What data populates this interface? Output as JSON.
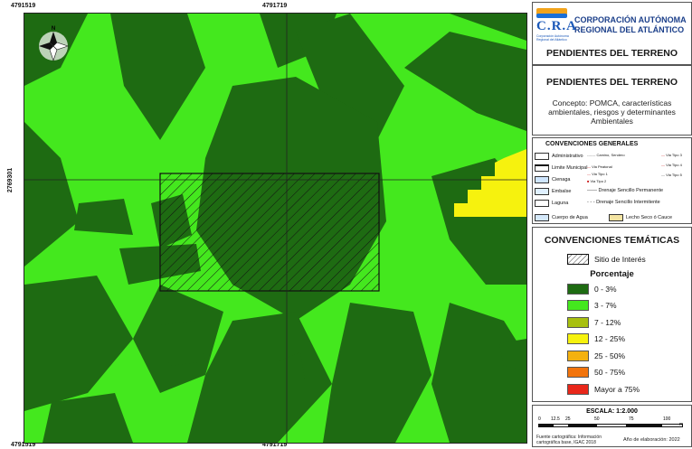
{
  "coords": {
    "top_left": "4791519",
    "top_center": "4791719",
    "bottom_left": "4791519",
    "bottom_center": "4791719",
    "left_mid": "2769301",
    "right_mid": "2769301",
    "right_bottom": "2769101"
  },
  "header": {
    "logo_text": "C.R.A",
    "logo_sub": "Corporación Autónoma Regional del Atlántico",
    "corp_line1": "CORPORACIÓN AUTÓNOMA",
    "corp_line2": "REGIONAL DEL ATLÁNTICO"
  },
  "title": "PENDIENTES DEL TERRENO",
  "concept": {
    "line1": "Concepto: POMCA, características",
    "line2": "ambientales, riesgos y determinantes",
    "line3": "Ambientales"
  },
  "general": {
    "title": "CONVENCIONES GENERALES",
    "items": {
      "administrativo": "Administrativo",
      "limite_municipal": "Limite Municipal",
      "cienaga": "Cienaga",
      "embalse": "Embalse",
      "laguna": "Laguna",
      "cuerpo_agua": "Cuerpo de Agua",
      "camino": "Camino, Sendero",
      "via_peatonal": "Via Peatonal",
      "via_tipo1": "Via Tipo 1",
      "via_tipo2": "Via Tipo 2",
      "via_tipo3": "Via Tipo 3",
      "via_tipo4": "Via Tipo 4",
      "via_tipo5": "Via Tipo 5",
      "drenaje_perm": "Drenaje Sencillo Permanente",
      "drenaje_int": "Drenaje Sencillo Intermitente",
      "lecho": "Lecho Seco ó Cauce"
    }
  },
  "tematicas": {
    "title": "CONVENCIONES TEMÁTICAS",
    "sitio": "Sitio de Interés",
    "porcentaje": "Porcentaje",
    "classes": [
      {
        "label": "0 - 3%",
        "color": "#1e6b12"
      },
      {
        "label": "3 - 7%",
        "color": "#44e81e"
      },
      {
        "label": "7 - 12%",
        "color": "#a8c010"
      },
      {
        "label": "12 - 25%",
        "color": "#f6f20e"
      },
      {
        "label": "25 - 50%",
        "color": "#f4b10f"
      },
      {
        "label": "50 - 75%",
        "color": "#f2740c"
      },
      {
        "label": "Mayor a 75%",
        "color": "#e9271a"
      }
    ]
  },
  "scale": {
    "title": "ESCALA: 1:2.000",
    "ticks": [
      "0",
      "12.5",
      "25",
      "50",
      "75",
      "100"
    ],
    "unit": "m"
  },
  "footer": {
    "source_line1": "Fuente cartográfica: Información",
    "source_line2": "cartográfica base, IGAC 2018",
    "year": "Año de elaboración: 2022"
  },
  "colors": {
    "dark_green": "#1e6b12",
    "light_green": "#44e81e",
    "yellow": "#f6f20e"
  }
}
